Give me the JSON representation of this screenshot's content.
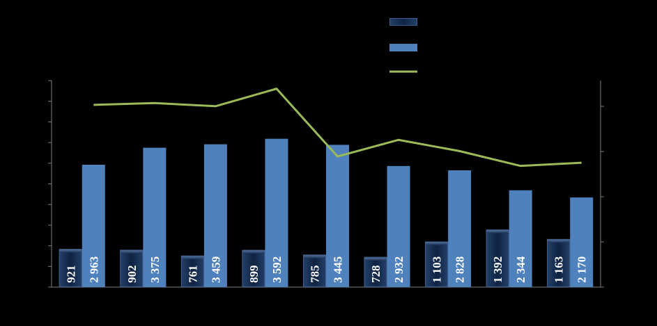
{
  "chart_data": {
    "type": "bar",
    "categories": [
      "",
      "",
      "",
      "",
      "",
      "",
      "",
      "",
      ""
    ],
    "series": [
      {
        "kind": "bar",
        "axis": "left",
        "color": "#1f3a60",
        "values": [
          921,
          902,
          761,
          899,
          785,
          728,
          1103,
          1392,
          1163
        ],
        "labels": [
          "921",
          "902",
          "761",
          "899",
          "785",
          "728",
          "1 103",
          "1 392",
          "1 163"
        ]
      },
      {
        "kind": "bar",
        "axis": "left",
        "color": "#4f81bd",
        "values": [
          2963,
          3375,
          3459,
          3592,
          3445,
          2932,
          2828,
          2344,
          2170
        ],
        "labels": [
          "2 963",
          "3 375",
          "3 459",
          "3 592",
          "3 445",
          "2 932",
          "2 828",
          "2 344",
          "2 170"
        ]
      },
      {
        "kind": "line",
        "axis": "right",
        "color": "#9bbb59",
        "values": [
          4.06,
          4.1,
          4.03,
          4.42,
          2.91,
          3.28,
          3.03,
          2.7,
          2.77
        ]
      }
    ],
    "ylim": [
      0,
      5000
    ],
    "y2lim": [
      0,
      4.6
    ],
    "grid": false,
    "legend": "top-right",
    "title": "",
    "xlabel": "",
    "ylabel": ""
  },
  "colors": {
    "background": "#000000",
    "axis": "#7f7f7f"
  }
}
